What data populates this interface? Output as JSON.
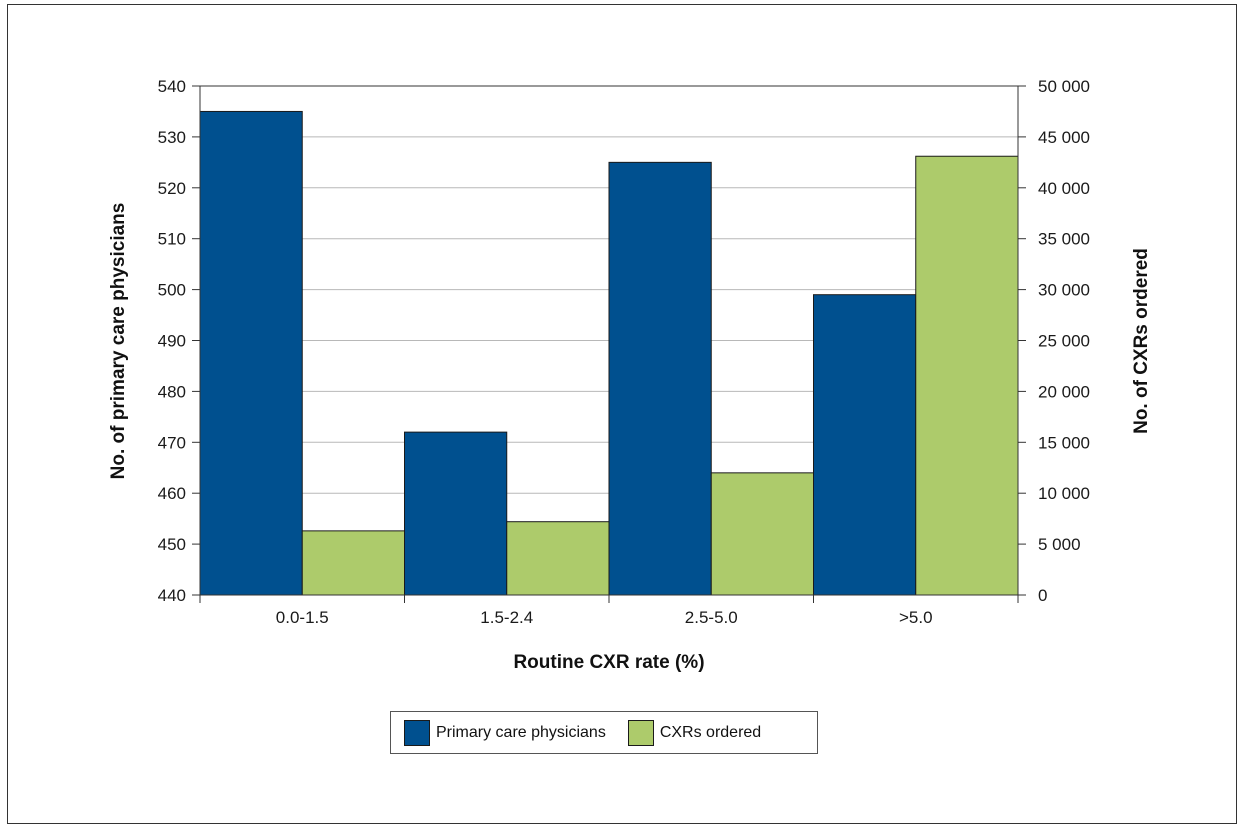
{
  "chart_data": {
    "type": "bar",
    "categories": [
      "0.0-1.5",
      "1.5-2.4",
      "2.5-5.0",
      ">5.0"
    ],
    "series": [
      {
        "name": "Primary care physicians",
        "axis": "left",
        "color": "#00508f",
        "values": [
          535,
          472,
          525,
          499
        ]
      },
      {
        "name": "CXRs ordered",
        "axis": "right",
        "color": "#adcb6b",
        "values": [
          6300,
          7200,
          12000,
          43100
        ]
      }
    ],
    "xlabel": "Routine CXR rate (%)",
    "ylabel_left": "No. of primary care physicians",
    "ylabel_right": "No. of CXRs ordered",
    "ylim_left": [
      440,
      540
    ],
    "ylim_right": [
      0,
      50000
    ],
    "yticks_left": [
      "440",
      "450",
      "460",
      "470",
      "480",
      "490",
      "500",
      "510",
      "520",
      "530",
      "540"
    ],
    "yticks_right": [
      "0",
      "5 000",
      "10 000",
      "15 000",
      "20 000",
      "25 000",
      "30 000",
      "35 000",
      "40 000",
      "45 000",
      "50 000"
    ],
    "grid": true,
    "legend": "bottom"
  }
}
